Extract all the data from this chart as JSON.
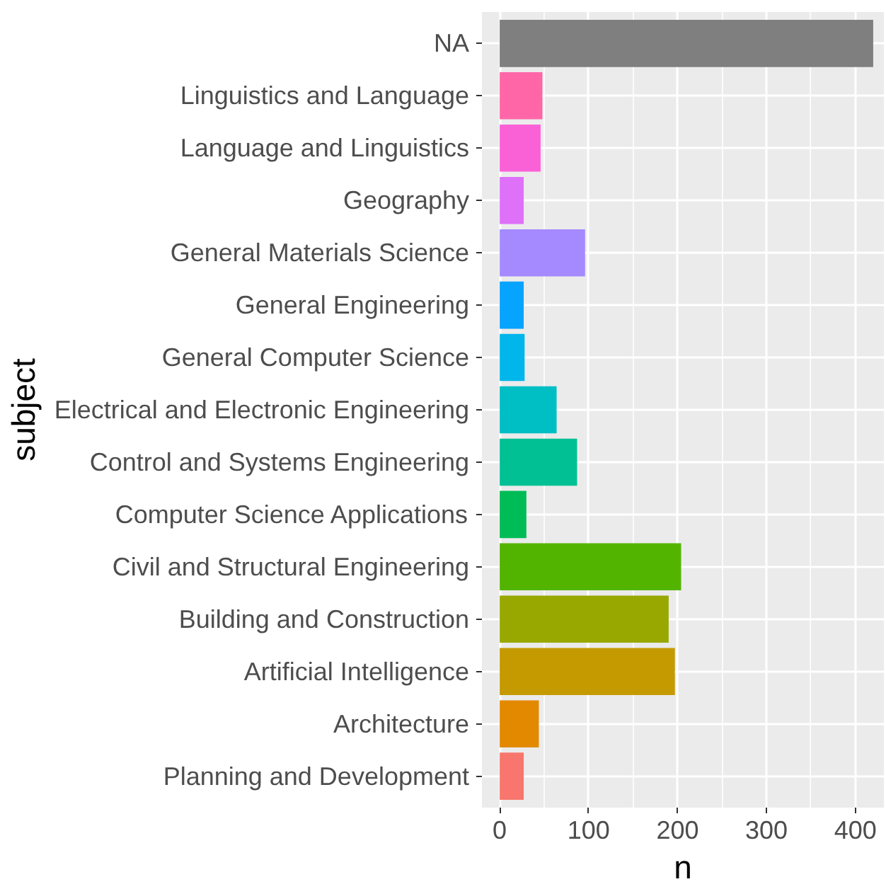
{
  "chart_data": {
    "type": "bar",
    "orientation": "horizontal",
    "xlabel": "n",
    "ylabel": "subject",
    "categories": [
      "NA",
      "Linguistics and Language",
      "Language and Linguistics",
      "Geography",
      "General Materials Science",
      "General Engineering",
      "General Computer Science",
      "Electrical and Electronic Engineering",
      "Control and Systems Engineering",
      "Computer Science Applications",
      "Civil and Structural Engineering",
      "Building and Construction",
      "Artificial Intelligence",
      "Architecture",
      "Planning and Development"
    ],
    "values": [
      420,
      48,
      46,
      27,
      96,
      27,
      28,
      64,
      87,
      30,
      204,
      190,
      197,
      44,
      27
    ],
    "colors": [
      "#7f7f7f",
      "#ff66a8",
      "#fb61d7",
      "#df70f8",
      "#a58aff",
      "#06a4ff",
      "#00b6eb",
      "#00bfc4",
      "#00c094",
      "#00bc56",
      "#53b400",
      "#99a800",
      "#c49a00",
      "#e38900",
      "#f8766d"
    ],
    "xlim": [
      -20,
      432
    ],
    "xticks": [
      0,
      100,
      200,
      300,
      400
    ],
    "grid": true
  }
}
